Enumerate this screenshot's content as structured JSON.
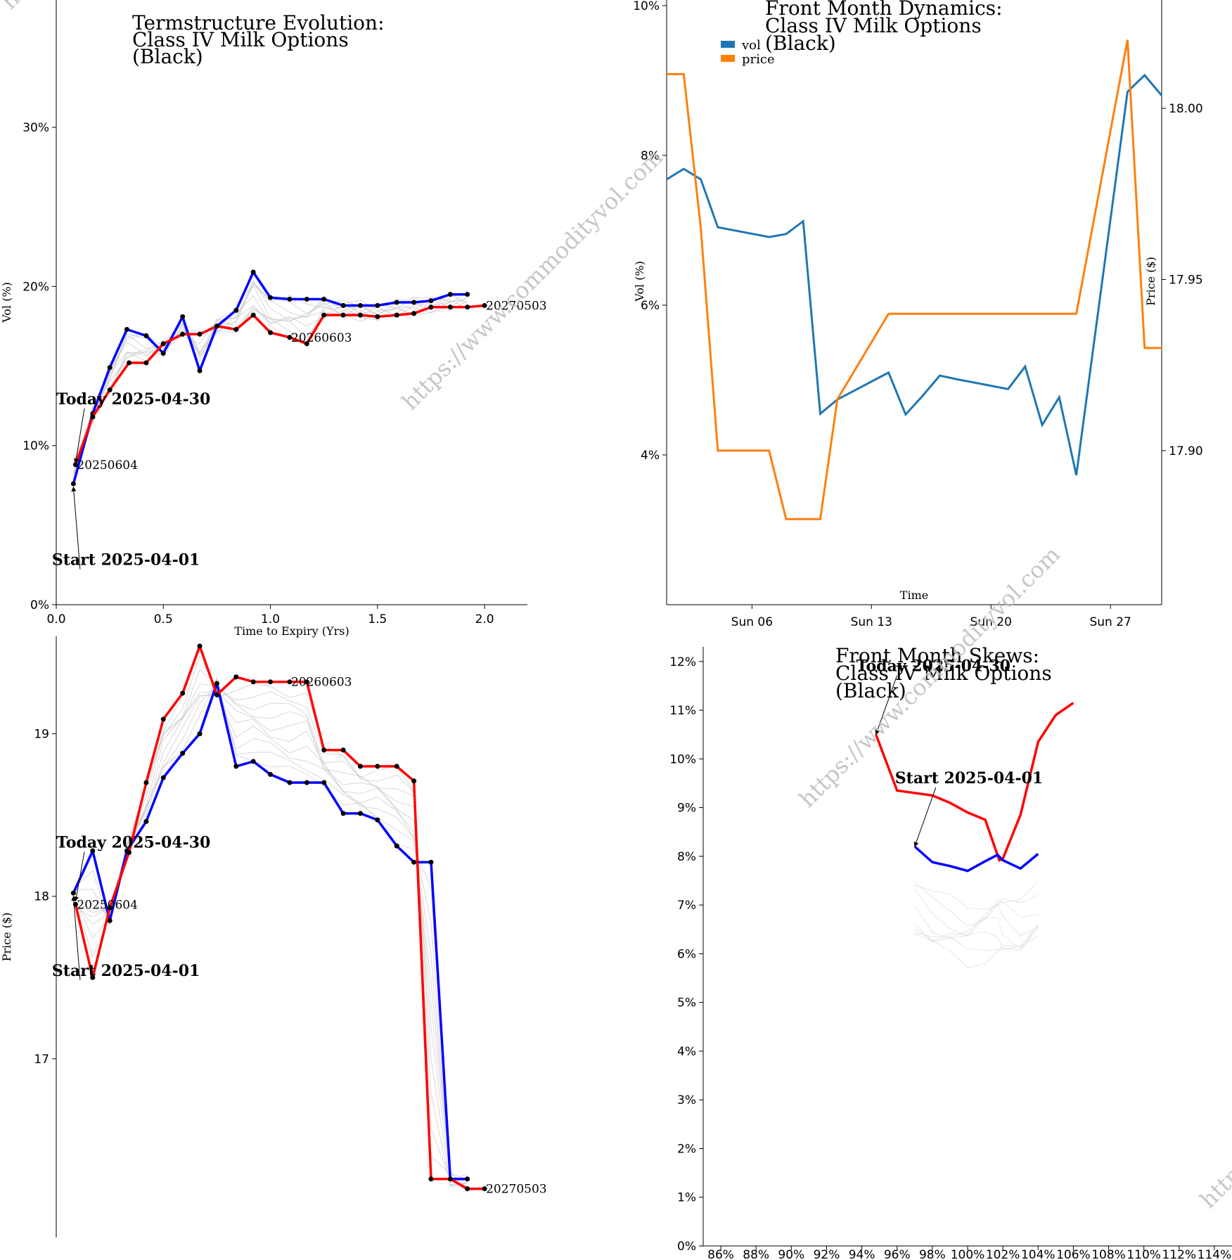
{
  "watermark": "https://www.commodityvol.com",
  "chart_data": [
    {
      "id": "termstructure-vol",
      "type": "line",
      "title": [
        "Termstructure Evolution:",
        "Class IV Milk Options",
        "(Black)"
      ],
      "xlabel": "Time to Expiry (Yrs)",
      "ylabel": "Vol (%)",
      "xlim": [
        0,
        2.2
      ],
      "ylim": [
        0,
        38
      ],
      "xticks": [
        0.0,
        0.5,
        1.0,
        1.5,
        2.0
      ],
      "xtick_labels": [
        "0.0",
        "0.5",
        "1.0",
        "1.5",
        "2.0"
      ],
      "yticks": [
        0,
        10,
        20,
        30
      ],
      "ytick_labels": [
        "0%",
        "10%",
        "20%",
        "30%"
      ],
      "series": [
        {
          "color": "#0000ff",
          "x": [
            0.08,
            0.17,
            0.25,
            0.33,
            0.42,
            0.5,
            0.59,
            0.67,
            0.75,
            0.84,
            0.92,
            1.0,
            1.09,
            1.17,
            1.25,
            1.34,
            1.42,
            1.5,
            1.59,
            1.67,
            1.75,
            1.84,
            1.92
          ],
          "y": [
            7.6,
            12.0,
            14.9,
            17.3,
            16.9,
            15.8,
            18.1,
            14.7,
            17.5,
            18.5,
            20.9,
            19.3,
            19.2,
            19.2,
            19.2,
            18.8,
            18.8,
            18.8,
            19.0,
            19.0,
            19.1,
            19.5,
            19.5
          ]
        },
        {
          "color": "#ff0000",
          "x": [
            0.09,
            0.17,
            0.25,
            0.34,
            0.42,
            0.5,
            0.59,
            0.67,
            0.75,
            0.84,
            0.92,
            1.0,
            1.09,
            1.17,
            1.25,
            1.34,
            1.42,
            1.5,
            1.59,
            1.67,
            1.75,
            1.84,
            1.92,
            2.0
          ],
          "y": [
            8.8,
            11.8,
            13.5,
            15.2,
            15.2,
            16.4,
            17.0,
            17.0,
            17.5,
            17.3,
            18.2,
            17.1,
            16.8,
            16.4,
            18.2,
            18.2,
            18.2,
            18.1,
            18.2,
            18.3,
            18.7,
            18.7,
            18.7,
            18.8
          ]
        }
      ],
      "labels": [
        {
          "text": "20250604",
          "x": 0.09,
          "y": 8.8
        },
        {
          "text": "20260603",
          "x": 1.09,
          "y": 16.8
        },
        {
          "text": "20270503",
          "x": 2.0,
          "y": 18.8
        }
      ],
      "annotations": [
        {
          "text": "Today 2025-04-30",
          "tx": 0.0,
          "ty": 12.6,
          "ax": 0.09,
          "ay": 8.9
        },
        {
          "text": "Start 2025-04-01",
          "tx": -0.02,
          "ty": 2.5,
          "ax": 0.08,
          "ay": 7.4
        }
      ]
    },
    {
      "id": "termstructure-price",
      "type": "line",
      "title": [],
      "xlabel": "",
      "ylabel": "Price ($)",
      "xlim": [
        0,
        2.2
      ],
      "ylim": [
        15.9,
        19.6
      ],
      "yticks": [
        17,
        18,
        19
      ],
      "ytick_labels": [
        "17",
        "18",
        "19"
      ],
      "series": [
        {
          "color": "#0000ff",
          "x": [
            0.08,
            0.17,
            0.25,
            0.33,
            0.42,
            0.5,
            0.59,
            0.67,
            0.75,
            0.84,
            0.92,
            1.0,
            1.09,
            1.17,
            1.25,
            1.34,
            1.42,
            1.5,
            1.59,
            1.67,
            1.75,
            1.84,
            1.92
          ],
          "y": [
            18.02,
            18.28,
            17.85,
            18.28,
            18.46,
            18.73,
            18.88,
            19.0,
            19.31,
            18.8,
            18.83,
            18.75,
            18.7,
            18.7,
            18.7,
            18.51,
            18.51,
            18.47,
            18.31,
            18.21,
            18.21,
            16.26,
            16.26
          ]
        },
        {
          "color": "#ff0000",
          "x": [
            0.09,
            0.17,
            0.25,
            0.34,
            0.42,
            0.5,
            0.59,
            0.67,
            0.75,
            0.84,
            0.92,
            1.0,
            1.09,
            1.17,
            1.25,
            1.34,
            1.42,
            1.5,
            1.59,
            1.67,
            1.75,
            1.84,
            1.92,
            2.0
          ],
          "y": [
            17.95,
            17.5,
            17.93,
            18.27,
            18.7,
            19.09,
            19.25,
            19.54,
            19.24,
            19.35,
            19.32,
            19.32,
            19.32,
            19.32,
            18.9,
            18.9,
            18.8,
            18.8,
            18.8,
            18.71,
            16.26,
            16.26,
            16.2,
            16.2
          ]
        }
      ],
      "labels": [
        {
          "text": "20250604",
          "x": 0.09,
          "y": 17.95
        },
        {
          "text": "20260603",
          "x": 1.09,
          "y": 19.32
        },
        {
          "text": "20270503",
          "x": 2.0,
          "y": 16.2
        }
      ],
      "annotations": [
        {
          "text": "Today 2025-04-30",
          "tx": 0.0,
          "ty": 18.3,
          "ax": 0.09,
          "ay": 17.97
        },
        {
          "text": "Start 2025-04-01",
          "tx": -0.02,
          "ty": 17.51,
          "ax": 0.08,
          "ay": 18.0
        }
      ]
    },
    {
      "id": "front-month-dynamics",
      "type": "line",
      "title": [
        "Front Month Dynamics:",
        "Class IV Milk Options",
        "(Black)"
      ],
      "xlabel": "Time",
      "ylabel": "Vol (%)",
      "y2label": "Price ($)",
      "xlim": [
        "2025-04-01",
        "2025-04-30"
      ],
      "ylim": [
        2.0,
        10.0
      ],
      "y2lim": [
        17.855,
        18.03
      ],
      "xticks": [
        "2025-04-06",
        "2025-04-13",
        "2025-04-20",
        "2025-04-27"
      ],
      "xtick_labels": [
        "Sun 06",
        "Sun 13",
        "Sun 20",
        "Sun 27"
      ],
      "yticks": [
        4,
        6,
        8,
        10
      ],
      "ytick_labels": [
        "4%",
        "6%",
        "8%",
        "10%"
      ],
      "y2ticks": [
        17.9,
        17.95,
        18.0
      ],
      "y2tick_labels": [
        "17.90",
        "17.95",
        "18.00"
      ],
      "legend": [
        {
          "name": "vol",
          "color": "#1f77b4"
        },
        {
          "name": "price",
          "color": "#ff7f0e"
        }
      ],
      "series": [
        {
          "name": "vol",
          "color": "#1f77b4",
          "axis": "left",
          "x": [
            "2025-04-01",
            "2025-04-02",
            "2025-04-03",
            "2025-04-04",
            "2025-04-07",
            "2025-04-08",
            "2025-04-09",
            "2025-04-10",
            "2025-04-11",
            "2025-04-14",
            "2025-04-15",
            "2025-04-16",
            "2025-04-17",
            "2025-04-18",
            "2025-04-21",
            "2025-04-22",
            "2025-04-23",
            "2025-04-24",
            "2025-04-25",
            "2025-04-28",
            "2025-04-29",
            "2025-04-30"
          ],
          "y": [
            7.68,
            7.82,
            7.68,
            7.04,
            6.91,
            6.95,
            7.12,
            4.55,
            4.74,
            5.1,
            4.54,
            4.79,
            5.06,
            5.01,
            4.88,
            5.18,
            4.4,
            4.77,
            3.73,
            8.85,
            9.07,
            8.8
          ]
        },
        {
          "name": "price",
          "color": "#ff7f0e",
          "axis": "right",
          "x": [
            "2025-04-01",
            "2025-04-02",
            "2025-04-03",
            "2025-04-04",
            "2025-04-07",
            "2025-04-08",
            "2025-04-09",
            "2025-04-10",
            "2025-04-11",
            "2025-04-14",
            "2025-04-15",
            "2025-04-16",
            "2025-04-17",
            "2025-04-18",
            "2025-04-21",
            "2025-04-22",
            "2025-04-23",
            "2025-04-24",
            "2025-04-25",
            "2025-04-28",
            "2025-04-29",
            "2025-04-30"
          ],
          "y": [
            18.01,
            18.01,
            17.965,
            17.9,
            17.9,
            17.88,
            17.88,
            17.88,
            17.915,
            17.94,
            17.94,
            17.94,
            17.94,
            17.94,
            17.94,
            17.94,
            17.94,
            17.94,
            17.94,
            18.02,
            17.93,
            17.93
          ]
        }
      ]
    },
    {
      "id": "front-month-skews",
      "type": "line",
      "title": [
        "Front Month Skews:",
        "Class IV Milk Options",
        "(Black)"
      ],
      "xlabel": "",
      "ylabel": "",
      "xlim": [
        85,
        115
      ],
      "ylim": [
        0,
        12.3
      ],
      "xticks": [
        86,
        88,
        90,
        92,
        94,
        96,
        98,
        100,
        102,
        104,
        106,
        108,
        110,
        112,
        114
      ],
      "xtick_labels": [
        "86%",
        "88%",
        "90%",
        "92%",
        "94%",
        "96%",
        "98%",
        "100%",
        "102%",
        "104%",
        "106%",
        "108%",
        "110%",
        "112%",
        "114%"
      ],
      "yticks": [
        0,
        1,
        2,
        3,
        4,
        5,
        6,
        7,
        8,
        9,
        10,
        11,
        12
      ],
      "ytick_labels": [
        "0%",
        "1%",
        "2%",
        "3%",
        "4%",
        "5%",
        "6%",
        "7%",
        "8%",
        "9%",
        "10%",
        "11%",
        "12%"
      ],
      "series": [
        {
          "color": "#ff0000",
          "x": [
            94.8,
            96.0,
            97.0,
            98.0,
            99.0,
            100.0,
            101.0,
            101.8,
            102.0,
            103.0,
            104.0,
            105.0,
            106.0
          ],
          "y": [
            10.5,
            9.35,
            9.3,
            9.25,
            9.1,
            8.9,
            8.75,
            7.92,
            7.95,
            8.85,
            10.35,
            10.9,
            11.15
          ]
        },
        {
          "color": "#0000ff",
          "x": [
            97.0,
            98.0,
            99.0,
            100.0,
            101.0,
            101.7,
            102.0,
            103.0,
            104.0
          ],
          "y": [
            8.2,
            7.88,
            7.8,
            7.7,
            7.9,
            8.03,
            7.92,
            7.75,
            8.05
          ]
        }
      ],
      "annotations": [
        {
          "text": "Today 2025-04-30",
          "tx": 94.8,
          "ty": 11.8,
          "ax": 94.8,
          "ay": 10.5
        },
        {
          "text": "Start 2025-04-01",
          "tx": 97.0,
          "ty": 9.5,
          "ax": 97.0,
          "ay": 8.2
        }
      ]
    }
  ]
}
